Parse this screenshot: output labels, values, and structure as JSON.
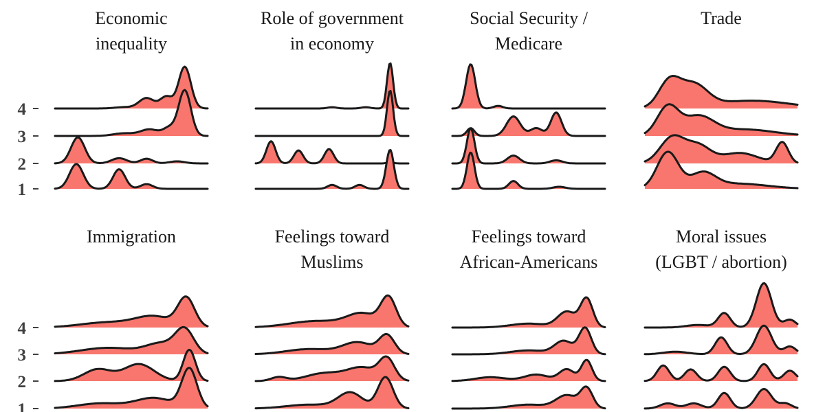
{
  "chart_data": {
    "type": "ridgeline",
    "fill_color": "#f8766d",
    "line_color": "#1a1a1a",
    "y_categories": [
      "1",
      "2",
      "3",
      "4"
    ],
    "grid": false,
    "x_range": [
      0,
      1
    ],
    "panels": [
      {
        "title": [
          "Economic",
          "inequality"
        ],
        "ridges": [
          {
            "y": "1",
            "peaks": [
              [
                0.14,
                0.045,
                0.95
              ],
              [
                0.42,
                0.04,
                0.75
              ],
              [
                0.6,
                0.04,
                0.18
              ]
            ]
          },
          {
            "y": "2",
            "peaks": [
              [
                0.15,
                0.045,
                1.0
              ],
              [
                0.42,
                0.05,
                0.2
              ],
              [
                0.6,
                0.04,
                0.18
              ],
              [
                0.8,
                0.05,
                0.08
              ]
            ]
          },
          {
            "y": "3",
            "peaks": [
              [
                0.45,
                0.07,
                0.1
              ],
              [
                0.62,
                0.06,
                0.25
              ],
              [
                0.75,
                0.04,
                0.3
              ],
              [
                0.85,
                0.04,
                1.75
              ]
            ]
          },
          {
            "y": "4",
            "peaks": [
              [
                0.45,
                0.06,
                0.05
              ],
              [
                0.6,
                0.05,
                0.4
              ],
              [
                0.73,
                0.04,
                0.45
              ],
              [
                0.85,
                0.04,
                1.6
              ]
            ]
          }
        ]
      },
      {
        "title": [
          "Role of government",
          "in economy"
        ],
        "ridges": [
          {
            "y": "1",
            "peaks": [
              [
                0.5,
                0.03,
                0.15
              ],
              [
                0.68,
                0.03,
                0.15
              ],
              [
                0.88,
                0.025,
                1.5
              ]
            ]
          },
          {
            "y": "2",
            "peaks": [
              [
                0.1,
                0.03,
                0.85
              ],
              [
                0.28,
                0.03,
                0.5
              ],
              [
                0.48,
                0.03,
                0.55
              ],
              [
                0.88,
                0.02,
                0.05
              ]
            ]
          },
          {
            "y": "3",
            "peaks": [
              [
                0.88,
                0.02,
                1.75
              ]
            ]
          },
          {
            "y": "4",
            "peaks": [
              [
                0.5,
                0.03,
                0.05
              ],
              [
                0.72,
                0.03,
                0.05
              ],
              [
                0.88,
                0.02,
                1.75
              ]
            ]
          }
        ]
      },
      {
        "title": [
          "Social Security /",
          "Medicare"
        ],
        "ridges": [
          {
            "y": "1",
            "peaks": [
              [
                0.12,
                0.025,
                1.4
              ],
              [
                0.4,
                0.03,
                0.3
              ],
              [
                0.7,
                0.04,
                0.08
              ]
            ]
          },
          {
            "y": "2",
            "peaks": [
              [
                0.12,
                0.025,
                1.35
              ],
              [
                0.4,
                0.04,
                0.3
              ],
              [
                0.68,
                0.04,
                0.12
              ]
            ]
          },
          {
            "y": "3",
            "peaks": [
              [
                0.12,
                0.025,
                0.3
              ],
              [
                0.4,
                0.045,
                0.75
              ],
              [
                0.55,
                0.04,
                0.3
              ],
              [
                0.68,
                0.035,
                0.9
              ]
            ]
          },
          {
            "y": "4",
            "peaks": [
              [
                0.12,
                0.03,
                1.7
              ],
              [
                0.3,
                0.03,
                0.1
              ]
            ]
          }
        ]
      },
      {
        "title": [
          "Trade"
        ],
        "ridges": [
          {
            "y": "1",
            "peaks": [
              [
                0.15,
                0.07,
                1.4
              ],
              [
                0.38,
                0.08,
                0.55
              ],
              [
                0.6,
                0.2,
                0.2
              ]
            ]
          },
          {
            "y": "2",
            "peaks": [
              [
                0.18,
                0.08,
                1.0
              ],
              [
                0.35,
                0.08,
                0.65
              ],
              [
                0.62,
                0.12,
                0.4
              ],
              [
                0.9,
                0.04,
                0.8
              ]
            ]
          },
          {
            "y": "3",
            "peaks": [
              [
                0.15,
                0.07,
                1.1
              ],
              [
                0.35,
                0.1,
                0.7
              ],
              [
                0.65,
                0.2,
                0.25
              ]
            ]
          },
          {
            "y": "4",
            "peaks": [
              [
                0.16,
                0.07,
                1.0
              ],
              [
                0.32,
                0.09,
                0.85
              ],
              [
                0.7,
                0.25,
                0.3
              ]
            ]
          }
        ]
      },
      {
        "title": [
          "Immigration"
        ],
        "ridges": [
          {
            "y": "1",
            "peaks": [
              [
                0.3,
                0.15,
                0.2
              ],
              [
                0.65,
                0.12,
                0.4
              ],
              [
                0.88,
                0.05,
                1.5
              ]
            ]
          },
          {
            "y": "2",
            "peaks": [
              [
                0.28,
                0.09,
                0.45
              ],
              [
                0.55,
                0.1,
                0.65
              ],
              [
                0.88,
                0.04,
                1.2
              ]
            ]
          },
          {
            "y": "3",
            "peaks": [
              [
                0.35,
                0.18,
                0.25
              ],
              [
                0.7,
                0.1,
                0.4
              ],
              [
                0.85,
                0.06,
                0.9
              ]
            ]
          },
          {
            "y": "4",
            "peaks": [
              [
                0.35,
                0.18,
                0.2
              ],
              [
                0.65,
                0.12,
                0.4
              ],
              [
                0.86,
                0.055,
                1.1
              ]
            ]
          }
        ]
      },
      {
        "title": [
          "Feelings toward",
          "Muslims"
        ],
        "ridges": [
          {
            "y": "1",
            "peaks": [
              [
                0.35,
                0.15,
                0.15
              ],
              [
                0.62,
                0.08,
                0.6
              ],
              [
                0.85,
                0.05,
                1.2
              ]
            ]
          },
          {
            "y": "2",
            "peaks": [
              [
                0.15,
                0.05,
                0.15
              ],
              [
                0.45,
                0.12,
                0.3
              ],
              [
                0.7,
                0.1,
                0.5
              ],
              [
                0.86,
                0.05,
                0.8
              ]
            ]
          },
          {
            "y": "3",
            "peaks": [
              [
                0.35,
                0.15,
                0.2
              ],
              [
                0.67,
                0.1,
                0.45
              ],
              [
                0.86,
                0.05,
                0.7
              ]
            ]
          },
          {
            "y": "4",
            "peaks": [
              [
                0.4,
                0.18,
                0.25
              ],
              [
                0.7,
                0.1,
                0.5
              ],
              [
                0.87,
                0.05,
                1.1
              ]
            ]
          }
        ]
      },
      {
        "title": [
          "Feelings toward",
          "African-Americans"
        ],
        "ridges": [
          {
            "y": "1",
            "peaks": [
              [
                0.5,
                0.12,
                0.15
              ],
              [
                0.75,
                0.07,
                0.5
              ],
              [
                0.88,
                0.04,
                0.75
              ]
            ]
          },
          {
            "y": "2",
            "peaks": [
              [
                0.25,
                0.1,
                0.15
              ],
              [
                0.55,
                0.08,
                0.25
              ],
              [
                0.75,
                0.05,
                0.45
              ],
              [
                0.88,
                0.035,
                0.8
              ]
            ]
          },
          {
            "y": "3",
            "peaks": [
              [
                0.5,
                0.12,
                0.15
              ],
              [
                0.73,
                0.06,
                0.5
              ],
              [
                0.87,
                0.04,
                1.0
              ]
            ]
          },
          {
            "y": "4",
            "peaks": [
              [
                0.5,
                0.12,
                0.15
              ],
              [
                0.75,
                0.06,
                0.6
              ],
              [
                0.88,
                0.04,
                1.1
              ]
            ]
          }
        ]
      },
      {
        "title": [
          "Moral issues",
          "(LGBT / abortion)"
        ],
        "ridges": [
          {
            "y": "1",
            "peaks": [
              [
                0.15,
                0.05,
                0.2
              ],
              [
                0.32,
                0.05,
                0.2
              ],
              [
                0.52,
                0.04,
                0.6
              ],
              [
                0.78,
                0.05,
                0.75
              ],
              [
                0.92,
                0.04,
                0.2
              ]
            ]
          },
          {
            "y": "2",
            "peaks": [
              [
                0.12,
                0.04,
                0.6
              ],
              [
                0.3,
                0.04,
                0.45
              ],
              [
                0.52,
                0.04,
                0.55
              ],
              [
                0.78,
                0.04,
                0.65
              ],
              [
                0.95,
                0.04,
                0.4
              ]
            ]
          },
          {
            "y": "3",
            "peaks": [
              [
                0.2,
                0.08,
                0.1
              ],
              [
                0.5,
                0.04,
                0.65
              ],
              [
                0.78,
                0.05,
                1.1
              ],
              [
                0.95,
                0.04,
                0.3
              ]
            ]
          },
          {
            "y": "4",
            "peaks": [
              [
                0.35,
                0.08,
                0.1
              ],
              [
                0.52,
                0.04,
                0.55
              ],
              [
                0.78,
                0.05,
                1.7
              ],
              [
                0.95,
                0.04,
                0.3
              ]
            ]
          }
        ]
      }
    ]
  }
}
